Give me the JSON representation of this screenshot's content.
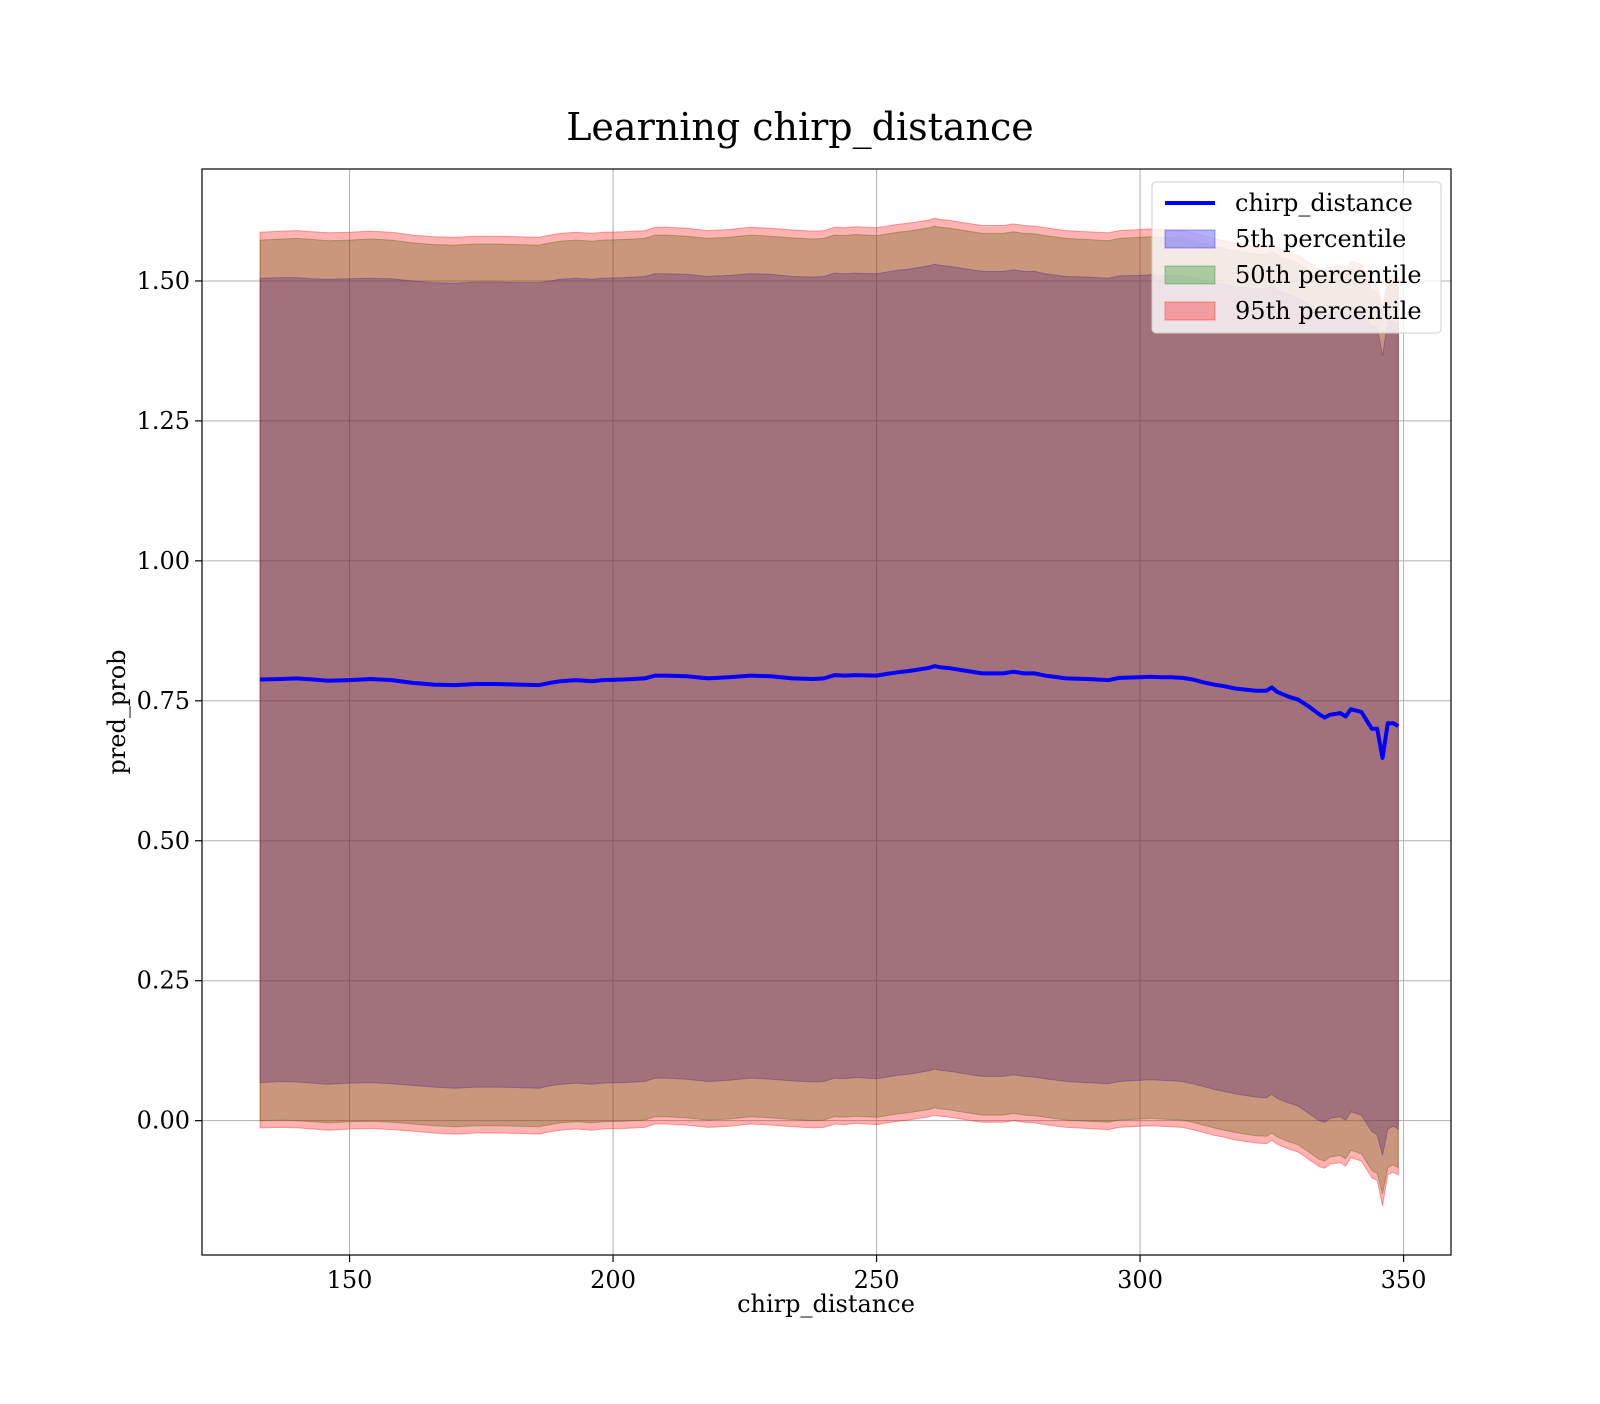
{
  "chart_data": {
    "type": "area",
    "title": "Learning chirp_distance",
    "xlabel": "chirp_distance",
    "ylabel": "pred_prob",
    "xlim": [
      122,
      359
    ],
    "ylim": [
      -0.24,
      1.7
    ],
    "xticks": [
      150,
      200,
      250,
      300,
      350
    ],
    "xtick_labels": [
      "150",
      "200",
      "250",
      "300",
      "350"
    ],
    "yticks": [
      0.0,
      0.25,
      0.5,
      0.75,
      1.0,
      1.25,
      1.5
    ],
    "ytick_labels": [
      "0.00",
      "0.25",
      "0.50",
      "0.75",
      "1.00",
      "1.25",
      "1.50"
    ],
    "grid": true,
    "legend_position": "top-right",
    "x": [
      133,
      137,
      140,
      143,
      146,
      150,
      154,
      158,
      162,
      166,
      170,
      174,
      178,
      182,
      186,
      188,
      190,
      193,
      196,
      198,
      202,
      206,
      208,
      210,
      214,
      218,
      222,
      226,
      230,
      234,
      238,
      240,
      242,
      244,
      246,
      250,
      252,
      254,
      256,
      258,
      260,
      261,
      262,
      264,
      266,
      270,
      274,
      276,
      278,
      280,
      282,
      286,
      290,
      294,
      296,
      300,
      302,
      304,
      306,
      308,
      310,
      312,
      314,
      316,
      318,
      320,
      322,
      324,
      325,
      326,
      328,
      330,
      332,
      334,
      335,
      336,
      338,
      339,
      340,
      342,
      344,
      345,
      346,
      347,
      348,
      349
    ],
    "series": [
      {
        "name": "chirp_distance",
        "kind": "line",
        "color": "#0000ff",
        "values": [
          0.788,
          0.789,
          0.79,
          0.788,
          0.786,
          0.787,
          0.789,
          0.787,
          0.782,
          0.779,
          0.778,
          0.78,
          0.78,
          0.779,
          0.778,
          0.782,
          0.785,
          0.787,
          0.785,
          0.787,
          0.788,
          0.79,
          0.795,
          0.795,
          0.794,
          0.79,
          0.792,
          0.795,
          0.794,
          0.79,
          0.789,
          0.79,
          0.796,
          0.795,
          0.796,
          0.795,
          0.798,
          0.801,
          0.803,
          0.806,
          0.809,
          0.812,
          0.81,
          0.808,
          0.805,
          0.799,
          0.799,
          0.802,
          0.799,
          0.799,
          0.795,
          0.79,
          0.789,
          0.787,
          0.791,
          0.792,
          0.793,
          0.792,
          0.792,
          0.791,
          0.788,
          0.783,
          0.779,
          0.776,
          0.772,
          0.77,
          0.768,
          0.768,
          0.774,
          0.766,
          0.758,
          0.752,
          0.74,
          0.726,
          0.72,
          0.725,
          0.728,
          0.722,
          0.735,
          0.73,
          0.7,
          0.7,
          0.648,
          0.71,
          0.71,
          0.705
        ]
      },
      {
        "name": "5th percentile",
        "kind": "band",
        "color": "#0000ff",
        "lower": [
          0.068,
          0.07,
          0.069,
          0.067,
          0.065,
          0.067,
          0.068,
          0.066,
          0.063,
          0.06,
          0.058,
          0.06,
          0.06,
          0.059,
          0.058,
          0.062,
          0.065,
          0.067,
          0.065,
          0.067,
          0.068,
          0.07,
          0.076,
          0.076,
          0.074,
          0.07,
          0.072,
          0.076,
          0.074,
          0.071,
          0.069,
          0.07,
          0.076,
          0.075,
          0.077,
          0.075,
          0.078,
          0.081,
          0.083,
          0.086,
          0.089,
          0.092,
          0.09,
          0.088,
          0.085,
          0.079,
          0.079,
          0.082,
          0.079,
          0.078,
          0.075,
          0.07,
          0.068,
          0.066,
          0.07,
          0.072,
          0.073,
          0.072,
          0.071,
          0.07,
          0.066,
          0.061,
          0.056,
          0.052,
          0.048,
          0.045,
          0.042,
          0.041,
          0.047,
          0.04,
          0.032,
          0.026,
          0.013,
          0.0,
          -0.003,
          0.004,
          0.007,
          0.001,
          0.016,
          0.01,
          -0.02,
          -0.025,
          -0.062,
          -0.015,
          -0.01,
          -0.015
        ],
        "upper": [
          1.505,
          1.506,
          1.506,
          1.504,
          1.503,
          1.504,
          1.505,
          1.504,
          1.5,
          1.497,
          1.496,
          1.498,
          1.498,
          1.497,
          1.497,
          1.5,
          1.503,
          1.505,
          1.503,
          1.505,
          1.506,
          1.508,
          1.513,
          1.513,
          1.512,
          1.508,
          1.51,
          1.513,
          1.512,
          1.508,
          1.507,
          1.508,
          1.514,
          1.513,
          1.514,
          1.513,
          1.516,
          1.519,
          1.521,
          1.524,
          1.527,
          1.53,
          1.528,
          1.526,
          1.523,
          1.517,
          1.517,
          1.52,
          1.517,
          1.517,
          1.513,
          1.508,
          1.507,
          1.505,
          1.509,
          1.51,
          1.511,
          1.51,
          1.51,
          1.509,
          1.506,
          1.501,
          1.497,
          1.494,
          1.49,
          1.488,
          1.486,
          1.486,
          1.492,
          1.484,
          1.476,
          1.47,
          1.458,
          1.444,
          1.438,
          1.443,
          1.446,
          1.44,
          1.453,
          1.448,
          1.418,
          1.418,
          1.366,
          1.428,
          1.428,
          1.423
        ]
      },
      {
        "name": "50th percentile",
        "kind": "band",
        "color": "#008000",
        "lower": [
          0.0,
          0.001,
          0.0,
          -0.002,
          -0.004,
          -0.002,
          -0.001,
          -0.003,
          -0.006,
          -0.009,
          -0.011,
          -0.009,
          -0.009,
          -0.01,
          -0.011,
          -0.007,
          -0.004,
          -0.002,
          -0.004,
          -0.002,
          -0.001,
          0.001,
          0.007,
          0.007,
          0.005,
          0.001,
          0.003,
          0.007,
          0.005,
          0.002,
          0.0,
          0.001,
          0.007,
          0.006,
          0.008,
          0.006,
          0.009,
          0.012,
          0.014,
          0.017,
          0.02,
          0.023,
          0.021,
          0.019,
          0.016,
          0.01,
          0.01,
          0.013,
          0.01,
          0.009,
          0.006,
          0.001,
          -0.001,
          -0.003,
          0.001,
          0.003,
          0.004,
          0.003,
          0.002,
          0.001,
          -0.003,
          -0.008,
          -0.013,
          -0.017,
          -0.021,
          -0.024,
          -0.027,
          -0.028,
          -0.022,
          -0.029,
          -0.037,
          -0.043,
          -0.056,
          -0.069,
          -0.072,
          -0.065,
          -0.062,
          -0.068,
          -0.053,
          -0.059,
          -0.089,
          -0.094,
          -0.131,
          -0.084,
          -0.079,
          -0.084
        ],
        "upper": [
          1.573,
          1.575,
          1.576,
          1.574,
          1.572,
          1.573,
          1.575,
          1.573,
          1.568,
          1.565,
          1.564,
          1.566,
          1.566,
          1.565,
          1.564,
          1.568,
          1.571,
          1.573,
          1.571,
          1.573,
          1.574,
          1.576,
          1.582,
          1.582,
          1.58,
          1.576,
          1.578,
          1.582,
          1.58,
          1.577,
          1.575,
          1.576,
          1.582,
          1.581,
          1.583,
          1.581,
          1.584,
          1.587,
          1.589,
          1.592,
          1.595,
          1.598,
          1.596,
          1.594,
          1.591,
          1.585,
          1.585,
          1.588,
          1.585,
          1.584,
          1.581,
          1.576,
          1.574,
          1.572,
          1.576,
          1.578,
          1.579,
          1.578,
          1.577,
          1.576,
          1.572,
          1.567,
          1.562,
          1.558,
          1.554,
          1.551,
          1.548,
          1.547,
          1.553,
          1.546,
          1.538,
          1.532,
          1.519,
          1.506,
          1.503,
          1.51,
          1.513,
          1.507,
          1.522,
          1.516,
          1.486,
          1.481,
          1.444,
          1.491,
          1.496,
          1.491
        ]
      },
      {
        "name": "95th percentile",
        "kind": "band",
        "color": "#ff0000",
        "lower": [
          -0.013,
          -0.012,
          -0.013,
          -0.015,
          -0.017,
          -0.015,
          -0.014,
          -0.016,
          -0.019,
          -0.022,
          -0.024,
          -0.022,
          -0.022,
          -0.023,
          -0.024,
          -0.02,
          -0.017,
          -0.015,
          -0.017,
          -0.015,
          -0.014,
          -0.012,
          -0.006,
          -0.006,
          -0.008,
          -0.012,
          -0.01,
          -0.006,
          -0.008,
          -0.011,
          -0.013,
          -0.012,
          -0.006,
          -0.007,
          -0.005,
          -0.007,
          -0.004,
          -0.001,
          0.001,
          0.004,
          0.007,
          0.01,
          0.008,
          0.006,
          0.003,
          -0.003,
          -0.003,
          0.0,
          -0.003,
          -0.004,
          -0.007,
          -0.012,
          -0.014,
          -0.016,
          -0.012,
          -0.01,
          -0.009,
          -0.01,
          -0.011,
          -0.012,
          -0.016,
          -0.021,
          -0.026,
          -0.03,
          -0.034,
          -0.037,
          -0.04,
          -0.041,
          -0.035,
          -0.042,
          -0.05,
          -0.056,
          -0.069,
          -0.082,
          -0.085,
          -0.078,
          -0.075,
          -0.081,
          -0.066,
          -0.072,
          -0.102,
          -0.107,
          -0.152,
          -0.097,
          -0.092,
          -0.097
        ],
        "upper": [
          1.587,
          1.589,
          1.59,
          1.588,
          1.586,
          1.587,
          1.589,
          1.587,
          1.582,
          1.579,
          1.578,
          1.58,
          1.58,
          1.579,
          1.578,
          1.582,
          1.585,
          1.587,
          1.585,
          1.587,
          1.588,
          1.59,
          1.596,
          1.596,
          1.594,
          1.59,
          1.592,
          1.596,
          1.594,
          1.591,
          1.589,
          1.59,
          1.596,
          1.595,
          1.597,
          1.595,
          1.598,
          1.601,
          1.603,
          1.606,
          1.609,
          1.612,
          1.61,
          1.608,
          1.605,
          1.599,
          1.599,
          1.602,
          1.599,
          1.598,
          1.595,
          1.59,
          1.588,
          1.586,
          1.59,
          1.592,
          1.593,
          1.592,
          1.591,
          1.59,
          1.586,
          1.581,
          1.576,
          1.572,
          1.568,
          1.565,
          1.562,
          1.561,
          1.567,
          1.56,
          1.552,
          1.546,
          1.533,
          1.52,
          1.517,
          1.524,
          1.527,
          1.521,
          1.536,
          1.53,
          1.5,
          1.495,
          1.455,
          1.505,
          1.51,
          1.505
        ]
      }
    ]
  }
}
